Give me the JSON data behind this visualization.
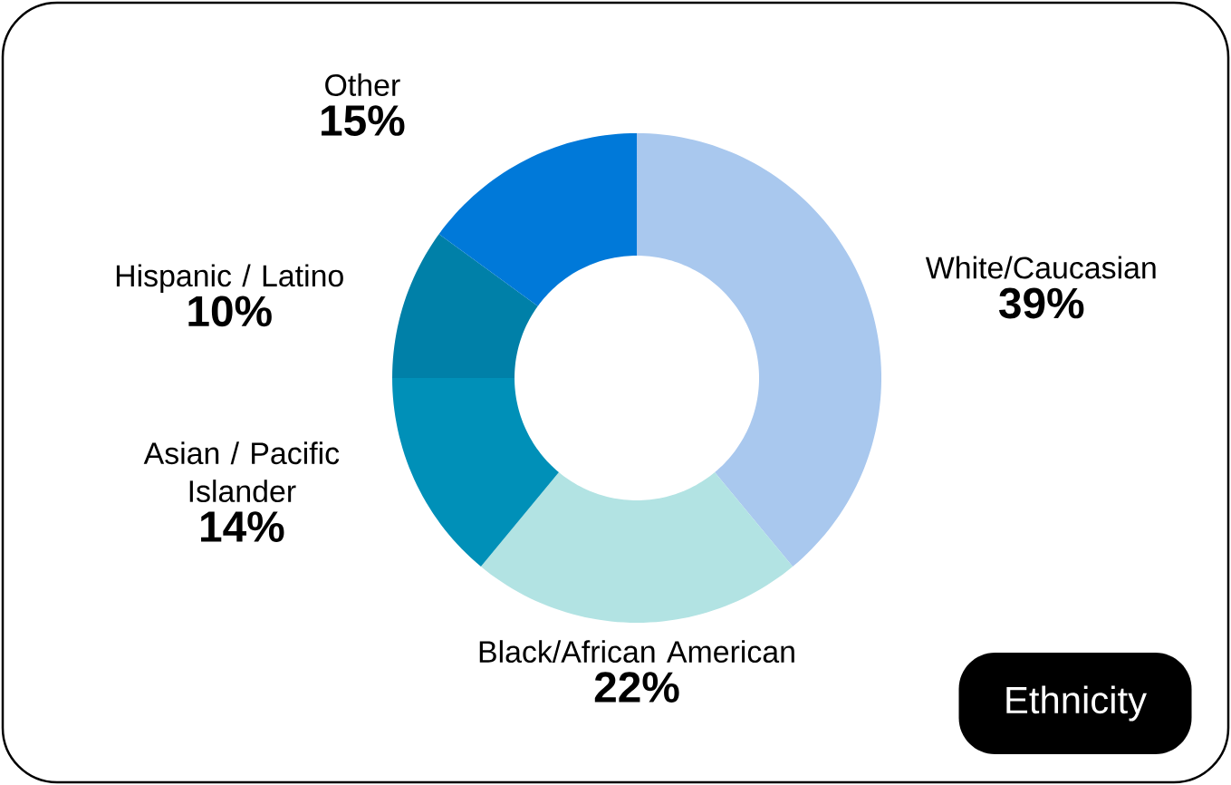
{
  "chart_data": {
    "type": "donut",
    "title": "Ethnicity",
    "categories": [
      "White/Caucasian",
      "Black/African American",
      "Asian / Pacific Islander",
      "Hispanic / Latino",
      "Other"
    ],
    "values": [
      39,
      22,
      14,
      10,
      15
    ],
    "colors": [
      "#a9c8ee",
      "#b2e3e3",
      "#0090b8",
      "#0080a8",
      "#0079d9"
    ],
    "value_labels": [
      "39%",
      "22%",
      "14%",
      "10%",
      "15%"
    ]
  }
}
